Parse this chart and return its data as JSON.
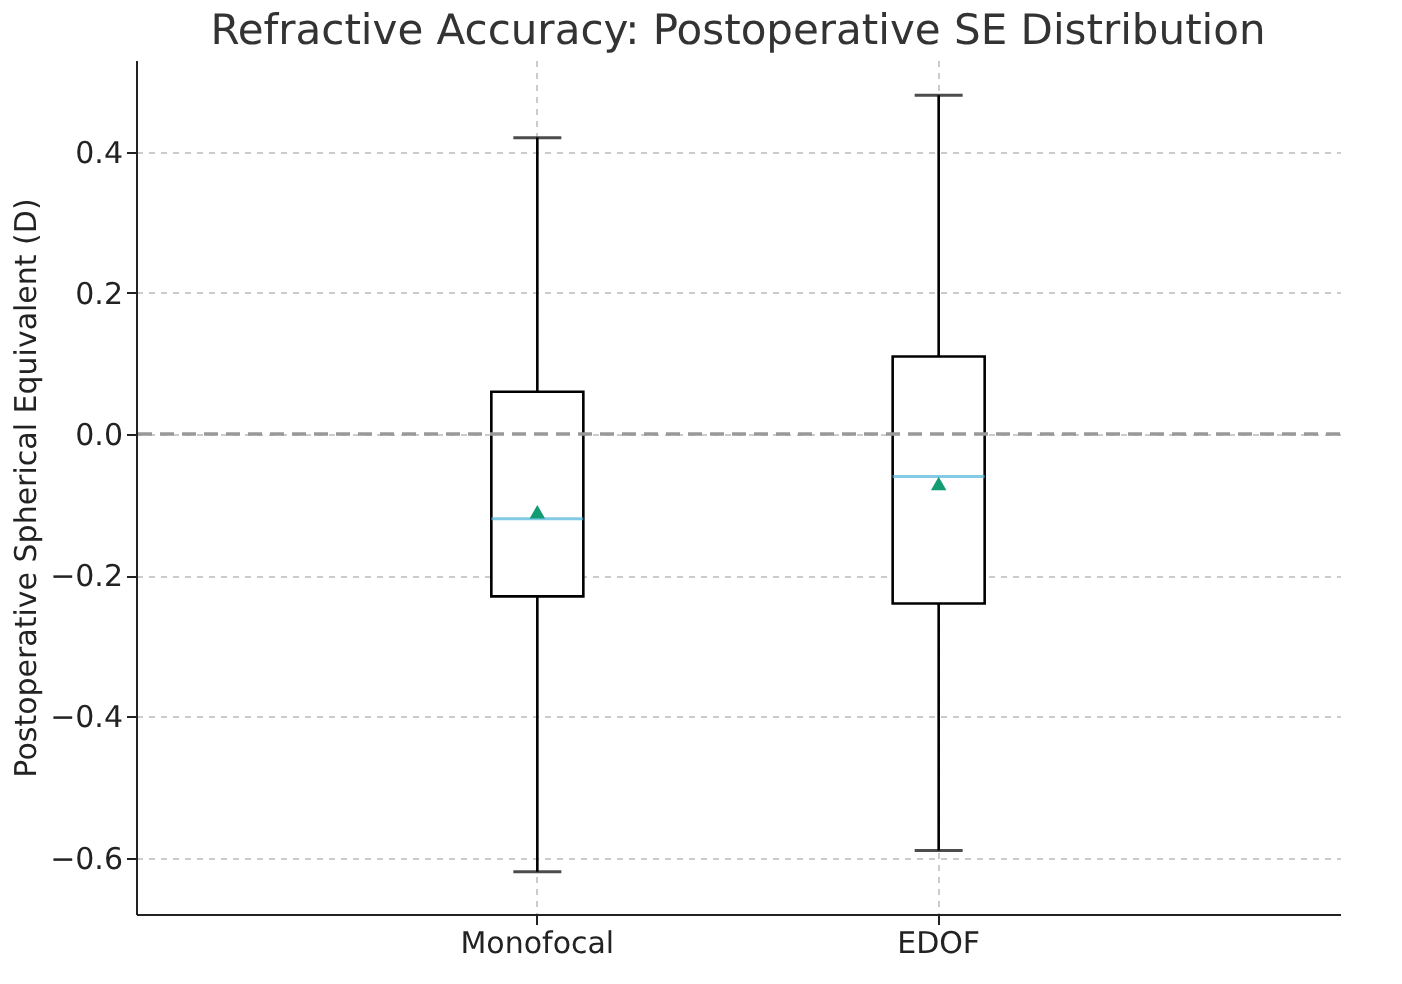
{
  "chart_data": {
    "type": "box",
    "title": "Refractive Accuracy: Postoperative SE Distribution",
    "ylabel": "Postoperative Spherical Equivalent (D)",
    "categories": [
      "Monofocal",
      "EDOF"
    ],
    "boxes": [
      {
        "low": -0.62,
        "q1": -0.23,
        "median": -0.12,
        "q3": 0.06,
        "high": 0.42,
        "mean": -0.11
      },
      {
        "low": -0.59,
        "q1": -0.24,
        "median": -0.06,
        "q3": 0.11,
        "high": 0.48,
        "mean": -0.07
      }
    ],
    "ylim": [
      -0.68,
      0.53
    ],
    "yticks": [
      -0.6,
      -0.4,
      -0.2,
      {
        "value": 0,
        "label": "0.0"
      },
      0.2,
      0.4
    ],
    "grid": true,
    "marker": "triangle",
    "ref_lines": [
      {
        "axis": "y",
        "value": 0,
        "color": "#999999",
        "line_style": "dashed"
      }
    ]
  }
}
